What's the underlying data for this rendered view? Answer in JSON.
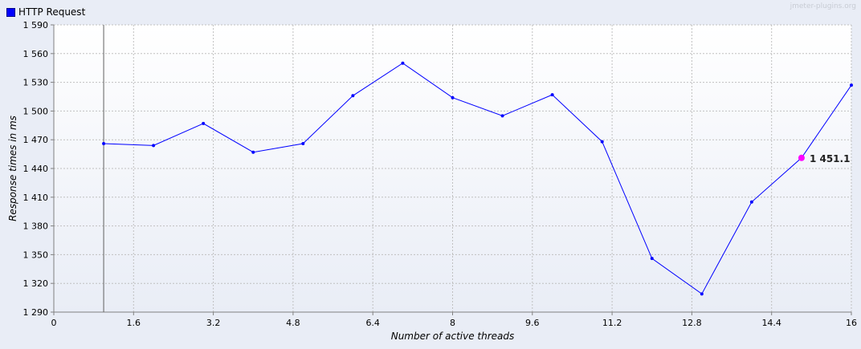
{
  "watermark": "jmeter-plugins.org",
  "colors": {
    "series": "#0000ff",
    "highlight": "#ff00ff",
    "grid": "#c0c0c0",
    "plot_bg_top": "#ffffff",
    "plot_bg_bottom": "#e9edf6"
  },
  "chart_data": {
    "type": "line",
    "xlabel": "Number of active threads",
    "ylabel": "Response times in ms",
    "xlim": [
      0,
      16
    ],
    "ylim": [
      1290,
      1590
    ],
    "xticks": [
      0,
      1.6,
      3.2,
      4.8,
      6.4,
      8,
      9.6,
      11.2,
      12.8,
      14.4,
      16
    ],
    "xtick_labels": [
      "0",
      "1.6",
      "3.2",
      "4.8",
      "6.4",
      "8",
      "9.6",
      "11.2",
      "12.8",
      "14.4",
      "16"
    ],
    "yticks": [
      1290,
      1320,
      1350,
      1380,
      1410,
      1440,
      1470,
      1500,
      1530,
      1560,
      1590
    ],
    "ytick_labels": [
      "1 290",
      "1 320",
      "1 350",
      "1 380",
      "1 410",
      "1 440",
      "1 470",
      "1 500",
      "1 530",
      "1 560",
      "1 590"
    ],
    "grid": true,
    "legend_position": "top-left",
    "series": [
      {
        "name": "HTTP Request",
        "x": [
          1,
          2,
          3,
          4,
          5,
          6,
          7,
          8,
          9,
          10,
          11,
          12,
          13,
          14,
          15,
          16
        ],
        "values": [
          1466,
          1464,
          1487,
          1457,
          1466,
          1516,
          1550,
          1514,
          1495,
          1517,
          1468,
          1346,
          1309,
          1405,
          1451.1,
          1527
        ]
      }
    ],
    "annotation": {
      "x": 15,
      "y": 1451.1,
      "label": "1 451.1"
    }
  }
}
